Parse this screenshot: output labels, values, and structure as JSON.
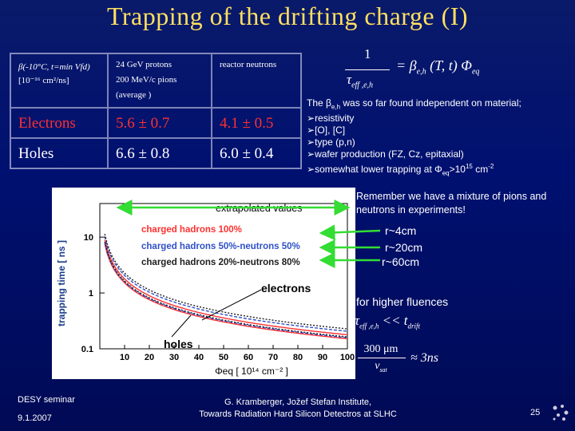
{
  "title": "Trapping of the drifting charge (I)",
  "table": {
    "col0_header_line1": "β(-10°C, t=min Vfd)",
    "col0_header_line2": "[10⁻¹⁶ cm²/ns]",
    "col1_header_line1": "24 GeV protons",
    "col1_header_line2": "200 MeV/c pions",
    "col1_header_line3": "(average )",
    "col2_header": "reactor neutrons",
    "rows": [
      {
        "label": "Electrons",
        "protons": "5.6 ± 0.7",
        "neutrons": "4.1 ± 0.5"
      },
      {
        "label": "Holes",
        "protons": "6.6 ± 0.8",
        "neutrons": "6.0 ± 0.4"
      }
    ]
  },
  "formula": {
    "numerator": "1",
    "equals_part": "= β",
    "subscript_beta": "e,h",
    "tail": "(T, t) Φ",
    "subscript_phi": "eq",
    "tau": "τ",
    "tau_sub": "eff ,e,h"
  },
  "list": {
    "intro_a": "The β",
    "intro_sub": "e,h",
    "intro_b": " was so far found independent on material;",
    "items": [
      "resistivity",
      "[O], [C]",
      "type (p,n)",
      "wafer production (FZ, Cz, epitaxial)"
    ],
    "last_item_a": "somewhat lower trapping at Φ",
    "last_item_sub": "eq",
    "last_item_b": ">10",
    "last_item_sup1": "15",
    "last_item_c": " cm",
    "last_item_sup2": "-2"
  },
  "chart_data": {
    "type": "line",
    "ylabel": "trapping time [ ns ]",
    "xlabel": "Φeq [ 10¹⁴ cm⁻² ]",
    "x_ticks": [
      "10",
      "20",
      "30",
      "40",
      "50",
      "60",
      "70",
      "80",
      "90",
      "100"
    ],
    "y_ticks": [
      "0.1",
      "1",
      "10"
    ],
    "xlim": [
      5,
      100
    ],
    "ylim": [
      0.1,
      40
    ],
    "y_scale": "log",
    "labels": {
      "extrapolated": "extrapolated values",
      "series1": "charged hadrons 100%",
      "series2": "charged hadrons 50%-neutrons 50%",
      "series3": "charged hadrons 20%-neutrons 80%",
      "electrons": "electrons",
      "holes": "holes"
    },
    "series": [
      {
        "name": "charged hadrons 100%",
        "color": "#ff3030",
        "beta_e": 5.6,
        "beta_h": 6.6
      },
      {
        "name": "charged hadrons 50%-neutrons 50%",
        "color": "#3050c8",
        "beta_e": 4.85,
        "beta_h": 6.3
      },
      {
        "name": "charged hadrons 20%-neutrons 80%",
        "color": "#202020",
        "beta_e": 4.4,
        "beta_h": 6.12
      }
    ]
  },
  "notes": {
    "mixture": "Remember we have a mixture of pions and neutrons in experiments!",
    "r4": "r~4cm",
    "r20": "r~20cm",
    "r60": "r~60cm",
    "higher": "for higher fluences",
    "tau_ineq_a": "τ",
    "tau_ineq_sub": "eff ,e,h",
    "tau_ineq_b": " << t",
    "tau_ineq_sub2": "drift",
    "frac_num": "300 μm",
    "frac_den": "v",
    "frac_den_sub": "sat",
    "approx": "≈ 3ns"
  },
  "footer": {
    "seminar": "DESY seminar",
    "date": "9.1.2007",
    "author": "G. Kramberger, Jožef Stefan Institute,",
    "talk": "Towards Radiation Hard Silicon Detectros at SLHC",
    "page": "25"
  },
  "colors": {
    "title": "#ffe060",
    "accent_red": "#ff3030",
    "arrow_green": "#33dd33",
    "background": "#001070"
  }
}
